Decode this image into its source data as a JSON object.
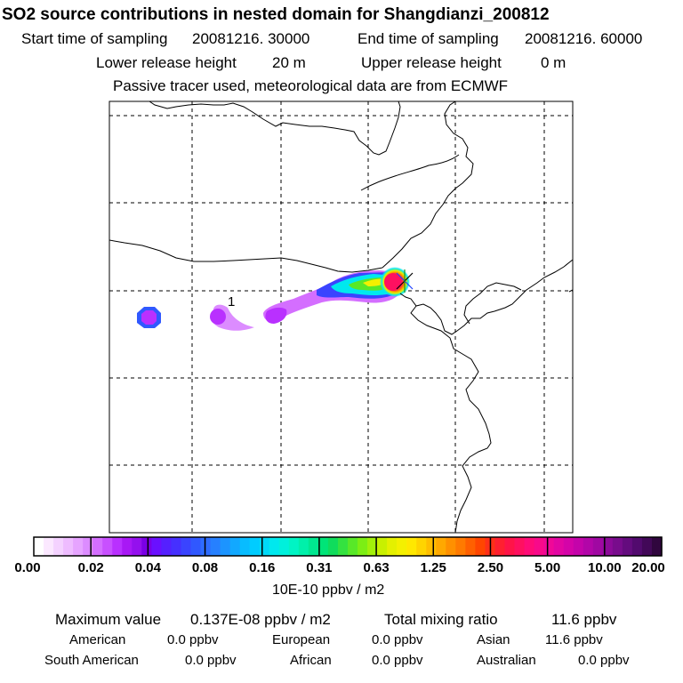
{
  "title": "SO2 source contributions in nested domain for Shangdianzi_200812",
  "sampling": {
    "start_label": "Start time of sampling",
    "start_value": "20081216. 30000",
    "end_label": "End time of sampling",
    "end_value": "20081216. 60000"
  },
  "release": {
    "lower_label": "Lower release height",
    "lower_value": "20 m",
    "upper_label": "Upper release height",
    "upper_value": "0 m"
  },
  "tracer_note": "Passive tracer used, meteorological data are from ECMWF",
  "map": {
    "plume_label": "1"
  },
  "colorbar": {
    "unit": "10E-10 ppbv / m2",
    "ticks": [
      "0.00",
      "0.02",
      "0.04",
      "0.08",
      "0.16",
      "0.31",
      "0.63",
      "1.25",
      "2.50",
      "5.00",
      "10.00",
      "20.00"
    ],
    "colors": [
      "#ffffff",
      "#fbe8ff",
      "#f4d2ff",
      "#eebcff",
      "#e6a4ff",
      "#dc8cff",
      "#d46eff",
      "#c850ff",
      "#b930ff",
      "#a818f5",
      "#9410ee",
      "#7a00e6",
      "#6a10ff",
      "#5520ff",
      "#4630ff",
      "#3a44ff",
      "#3058ff",
      "#2e6cff",
      "#2680ff",
      "#1c94ff",
      "#12a8ff",
      "#08bcff",
      "#00ccff",
      "#00d8f8",
      "#00e8ee",
      "#00f0dc",
      "#00f4c4",
      "#00f0aa",
      "#00e890",
      "#00e478",
      "#10dc5c",
      "#34e240",
      "#58e828",
      "#7cee14",
      "#a2f00a",
      "#c8f000",
      "#e4f000",
      "#f4f000",
      "#ffe800",
      "#ffd400",
      "#ffbe00",
      "#ffa800",
      "#ff9000",
      "#ff7a00",
      "#ff6000",
      "#ff4600",
      "#ff3018",
      "#ff2030",
      "#ff1448",
      "#ff1060",
      "#ff0c78",
      "#f80a8a",
      "#f00898",
      "#e206a2",
      "#d404a8",
      "#c404aa",
      "#b206a8",
      "#a008a2",
      "#8c0a98",
      "#780c8c",
      "#640c7e",
      "#520a6e",
      "#420858",
      "#30063e"
    ]
  },
  "stats": {
    "max_label": "Maximum value",
    "max_value": "0.137E-08 ppbv / m2",
    "total_label": "Total mixing ratio",
    "total_value": "11.6 ppbv",
    "regions": [
      {
        "name": "American",
        "value": "0.0 ppbv"
      },
      {
        "name": "European",
        "value": "0.0 ppbv"
      },
      {
        "name": "Asian",
        "value": "11.6 ppbv"
      },
      {
        "name": "South American",
        "value": "0.0 ppbv"
      },
      {
        "name": "African",
        "value": "0.0 ppbv"
      },
      {
        "name": "Australian",
        "value": "0.0 ppbv"
      }
    ]
  }
}
